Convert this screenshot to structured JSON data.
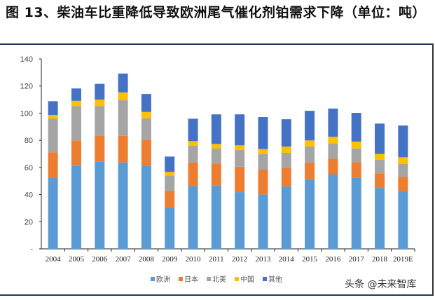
{
  "title": "图 13、柴油车比重降低导致欧洲尾气催化剂铂需求下降（单位：吨）",
  "watermark": "头条 @未来智库",
  "chart_data": {
    "type": "bar",
    "stacked": true,
    "title": "",
    "xlabel": "",
    "ylabel": "",
    "ylim": [
      0,
      140
    ],
    "yticks": [
      0,
      20,
      40,
      60,
      80,
      100,
      120,
      140
    ],
    "ytick_labels": [
      "-",
      "20",
      "40",
      "60",
      "80",
      "100",
      "120",
      "140"
    ],
    "grid": false,
    "legend_position": "bottom",
    "categories": [
      "2004",
      "2005",
      "2006",
      "2007",
      "2008",
      "2009",
      "2010",
      "2011",
      "2012",
      "2013",
      "2014",
      "2015",
      "2016",
      "2017",
      "2018",
      "2019E"
    ],
    "series": [
      {
        "name": "欧洲",
        "color": "#5b9bd5",
        "values": [
          52.4,
          61,
          64.1,
          63.7,
          61.3,
          30.2,
          46.4,
          46.6,
          41.8,
          40,
          45.9,
          51.5,
          55,
          52.6,
          44.8,
          42.4
        ]
      },
      {
        "name": "日本",
        "color": "#ed7d31",
        "values": [
          18.7,
          18.9,
          19.1,
          19.6,
          19.1,
          12.4,
          17.3,
          15.9,
          18.7,
          18.4,
          13.9,
          12.2,
          11.5,
          11.3,
          10.9,
          10.7
        ]
      },
      {
        "name": "北美",
        "color": "#a5a5a5",
        "values": [
          24.9,
          25.3,
          22,
          26.2,
          15.8,
          11.5,
          12.4,
          11.4,
          12.4,
          11.4,
          11,
          11.7,
          11.2,
          10.1,
          9.9,
          9.6
        ]
      },
      {
        "name": "中国",
        "color": "#ffc000",
        "values": [
          2.6,
          3.9,
          4.8,
          5.8,
          4.7,
          2.6,
          3.3,
          3.4,
          3.4,
          3.7,
          4.5,
          4.5,
          4.9,
          5,
          4.3,
          4.8
        ]
      },
      {
        "name": "其他",
        "color": "#4472c4",
        "values": [
          10.2,
          9.1,
          11.6,
          13.9,
          13.2,
          11.3,
          16.5,
          21.8,
          22.8,
          23.6,
          20.2,
          21.8,
          20.8,
          21.2,
          22.4,
          23.4
        ]
      }
    ]
  }
}
